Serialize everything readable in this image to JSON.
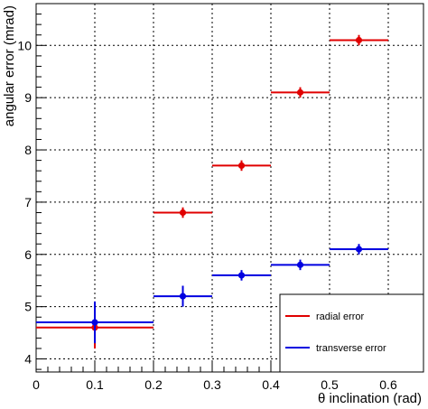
{
  "chart_data": {
    "type": "scatter",
    "xlabel": "θ inclination (rad)",
    "ylabel": "angular error (mrad)",
    "xlim": [
      0,
      0.66
    ],
    "ylim": [
      3.75,
      10.8
    ],
    "x_ticks": [
      0,
      0.1,
      0.2,
      0.3,
      0.4,
      0.5,
      0.6
    ],
    "x_tick_labels": [
      "0",
      "0.1",
      "0.2",
      "0.3",
      "0.4",
      "0.5",
      "0.6"
    ],
    "y_ticks": [
      4,
      5,
      6,
      7,
      8,
      9,
      10
    ],
    "y_tick_labels": [
      "4",
      "5",
      "6",
      "7",
      "8",
      "9",
      "10"
    ],
    "grid": true,
    "legend_position": "bottom-right",
    "series": [
      {
        "name": "radial error",
        "color": "#e00000",
        "points": [
          {
            "x": 0.1,
            "y": 4.6,
            "xerr": 0.1,
            "yerr": 0.4
          },
          {
            "x": 0.25,
            "y": 6.8,
            "xerr": 0.05,
            "yerr": 0.1
          },
          {
            "x": 0.35,
            "y": 7.7,
            "xerr": 0.05,
            "yerr": 0.1
          },
          {
            "x": 0.45,
            "y": 9.1,
            "xerr": 0.05,
            "yerr": 0.1
          },
          {
            "x": 0.55,
            "y": 10.1,
            "xerr": 0.05,
            "yerr": 0.1
          }
        ]
      },
      {
        "name": "transverse error",
        "color": "#0000e0",
        "points": [
          {
            "x": 0.1,
            "y": 4.7,
            "xerr": 0.1,
            "yerr": 0.4
          },
          {
            "x": 0.25,
            "y": 5.2,
            "xerr": 0.05,
            "yerr": 0.2
          },
          {
            "x": 0.35,
            "y": 5.6,
            "xerr": 0.05,
            "yerr": 0.1
          },
          {
            "x": 0.45,
            "y": 5.8,
            "xerr": 0.05,
            "yerr": 0.1
          },
          {
            "x": 0.55,
            "y": 6.1,
            "xerr": 0.05,
            "yerr": 0.1
          }
        ]
      }
    ]
  }
}
